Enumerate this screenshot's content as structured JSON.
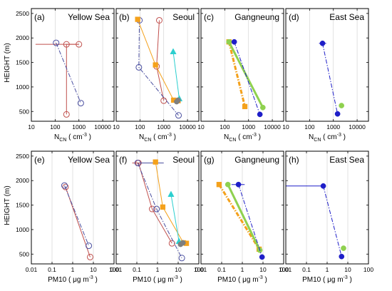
{
  "figure": {
    "ylabel": "HEIGHT (m)",
    "top_xlabel": {
      "main": "N",
      "sub": "CN",
      "units_pre": " ( cm",
      "units_sup": "-3",
      "units_post": " )"
    },
    "bottom_xlabel": {
      "main": "PM10",
      "units_pre": " ( μg m",
      "units_sup": "-3",
      "units_post": " )"
    },
    "top_xticks": [
      "10",
      "100",
      "1000",
      "10000"
    ],
    "bottom_xticks": [
      "0.01",
      "0.1",
      "1",
      "10",
      "100"
    ],
    "yticks": [
      "500",
      "1000",
      "1500",
      "2000",
      "2500"
    ]
  },
  "chart_data": [
    {
      "panel": "(a)",
      "title": "Yellow Sea",
      "type": "line",
      "xscale": "log",
      "xlim": [
        10,
        30000
      ],
      "ylim": [
        300,
        2600
      ],
      "series": [
        {
          "color": "#c0504d",
          "style": "solid",
          "marker": "open-circle",
          "points": [
            [
              1000,
              1870
            ],
            [
              300,
              1870
            ],
            [
              300,
              440
            ]
          ],
          "xerr": [
            [
              15,
              1000
            ]
          ]
        },
        {
          "color": "#4a4fa0",
          "style": "dashdot",
          "marker": "open-circle",
          "points": [
            [
              110,
              1900
            ],
            [
              1200,
              670
            ]
          ]
        }
      ]
    },
    {
      "panel": "(b)",
      "title": "Seoul",
      "type": "line",
      "xscale": "log",
      "xlim": [
        10,
        30000
      ],
      "ylim": [
        300,
        2600
      ],
      "series": [
        {
          "color": "#c0504d",
          "style": "solid",
          "marker": "open-circle",
          "points": [
            [
              650,
              2360
            ],
            [
              500,
              1420
            ],
            [
              1000,
              720
            ]
          ]
        },
        {
          "color": "#4a4fa0",
          "style": "dashdot",
          "marker": "open-circle",
          "points": [
            [
              95,
              2360
            ],
            [
              90,
              1400
            ],
            [
              4200,
              420
            ]
          ]
        },
        {
          "color": "#f4a11b",
          "style": "solid",
          "marker": "square",
          "points": [
            [
              80,
              2380
            ],
            [
              450,
              1450
            ],
            [
              2600,
              730
            ],
            [
              4000,
              720
            ]
          ]
        },
        {
          "color": "#2ccfcf",
          "style": "solid",
          "marker": "triangle",
          "points": [
            [
              2500,
              1720
            ],
            [
              4500,
              760
            ]
          ]
        },
        {
          "color": "#7f7f7f",
          "style": "solid",
          "marker": "filled-circle",
          "points": [
            [
              3500,
              700
            ],
            [
              4000,
              730
            ]
          ]
        }
      ]
    },
    {
      "panel": "(c)",
      "title": "Gangneung",
      "type": "line",
      "xscale": "log",
      "xlim": [
        10,
        30000
      ],
      "ylim": [
        300,
        2600
      ],
      "series": [
        {
          "color": "#f4a11b",
          "style": "dashdot",
          "marker": "square",
          "points": [
            [
              150,
              1920
            ],
            [
              700,
              600
            ]
          ]
        },
        {
          "color": "#8fd14f",
          "style": "solid",
          "marker": "filled-circle",
          "points": [
            [
              150,
              1920
            ],
            [
              4000,
              580
            ]
          ]
        },
        {
          "color": "#1e1ec8",
          "style": "dashdot",
          "marker": "filled-circle",
          "points": [
            [
              250,
              1920
            ],
            [
              3000,
              440
            ]
          ]
        }
      ]
    },
    {
      "panel": "(d)",
      "title": "East Sea",
      "type": "line",
      "xscale": "log",
      "xlim": [
        10,
        30000
      ],
      "ylim": [
        300,
        2600
      ],
      "series": [
        {
          "color": "#1e1ec8",
          "style": "dashdot",
          "marker": "filled-circle",
          "points": [
            [
              350,
              1890
            ],
            [
              1500,
              450
            ]
          ],
          "xerr": [
            [
              250,
              500
            ]
          ]
        },
        {
          "color": "#8fd14f",
          "style": "solid",
          "marker": "filled-circle",
          "points": [
            [
              2200,
              620
            ]
          ]
        }
      ]
    },
    {
      "panel": "(e)",
      "title": "Yellow Sea",
      "type": "line",
      "xscale": "log",
      "xlim": [
        0.01,
        100
      ],
      "ylim": [
        300,
        2600
      ],
      "series": [
        {
          "color": "#c0504d",
          "style": "solid",
          "marker": "open-circle",
          "points": [
            [
              0.45,
              1870
            ],
            [
              7,
              440
            ]
          ]
        },
        {
          "color": "#4a4fa0",
          "style": "dashdot",
          "marker": "open-circle",
          "points": [
            [
              0.4,
              1900
            ],
            [
              6,
              670
            ]
          ]
        }
      ]
    },
    {
      "panel": "(f)",
      "title": "Seoul",
      "type": "line",
      "xscale": "log",
      "xlim": [
        0.01,
        100
      ],
      "ylim": [
        300,
        2600
      ],
      "series": [
        {
          "color": "#c0504d",
          "style": "solid",
          "marker": "open-circle",
          "points": [
            [
              0.12,
              2360
            ],
            [
              0.55,
              1420
            ],
            [
              5,
              720
            ]
          ],
          "xerr": [
            [
              0.06,
              0.2
            ]
          ]
        },
        {
          "color": "#4a4fa0",
          "style": "dashdot",
          "marker": "open-circle",
          "points": [
            [
              0.11,
              2360
            ],
            [
              0.9,
              1420
            ],
            [
              15,
              420
            ]
          ],
          "xerr": [
            [
              0.15,
              2
            ]
          ]
        },
        {
          "color": "#f4a11b",
          "style": "solid",
          "marker": "square",
          "points": [
            [
              0.8,
              2380
            ],
            [
              1.8,
              1460
            ],
            [
              18,
              730
            ],
            [
              25,
              720
            ]
          ]
        },
        {
          "color": "#2ccfcf",
          "style": "solid",
          "marker": "triangle",
          "points": [
            [
              4.5,
              1720
            ],
            [
              11,
              760
            ]
          ]
        },
        {
          "color": "#7f7f7f",
          "style": "solid",
          "marker": "filled-circle",
          "points": [
            [
              13,
              700
            ],
            [
              17,
              730
            ]
          ]
        }
      ]
    },
    {
      "panel": "(g)",
      "title": "Gangneung",
      "type": "line",
      "xscale": "log",
      "xlim": [
        0.01,
        100
      ],
      "ylim": [
        300,
        2600
      ],
      "series": [
        {
          "color": "#f4a11b",
          "style": "dashdot",
          "marker": "square",
          "points": [
            [
              0.075,
              1920
            ],
            [
              6.5,
              600
            ]
          ]
        },
        {
          "color": "#8fd14f",
          "style": "solid",
          "marker": "filled-circle",
          "points": [
            [
              0.2,
              1920
            ],
            [
              7,
              580
            ]
          ]
        },
        {
          "color": "#1e1ec8",
          "style": "dashdot",
          "marker": "filled-circle",
          "points": [
            [
              0.65,
              1920
            ],
            [
              9,
              440
            ]
          ],
          "xerr": [
            [
              0.3,
              1.3
            ]
          ]
        }
      ]
    },
    {
      "panel": "(h)",
      "title": "East Sea",
      "type": "line",
      "xscale": "log",
      "xlim": [
        0.01,
        100
      ],
      "ylim": [
        300,
        2600
      ],
      "series": [
        {
          "color": "#1e1ec8",
          "style": "dashdot",
          "marker": "filled-circle",
          "points": [
            [
              0.65,
              1890
            ],
            [
              5,
              450
            ]
          ],
          "xerr": [
            [
              0.01,
              0.65
            ]
          ]
        },
        {
          "color": "#8fd14f",
          "style": "solid",
          "marker": "filled-circle",
          "points": [
            [
              6.2,
              620
            ]
          ]
        }
      ]
    }
  ]
}
